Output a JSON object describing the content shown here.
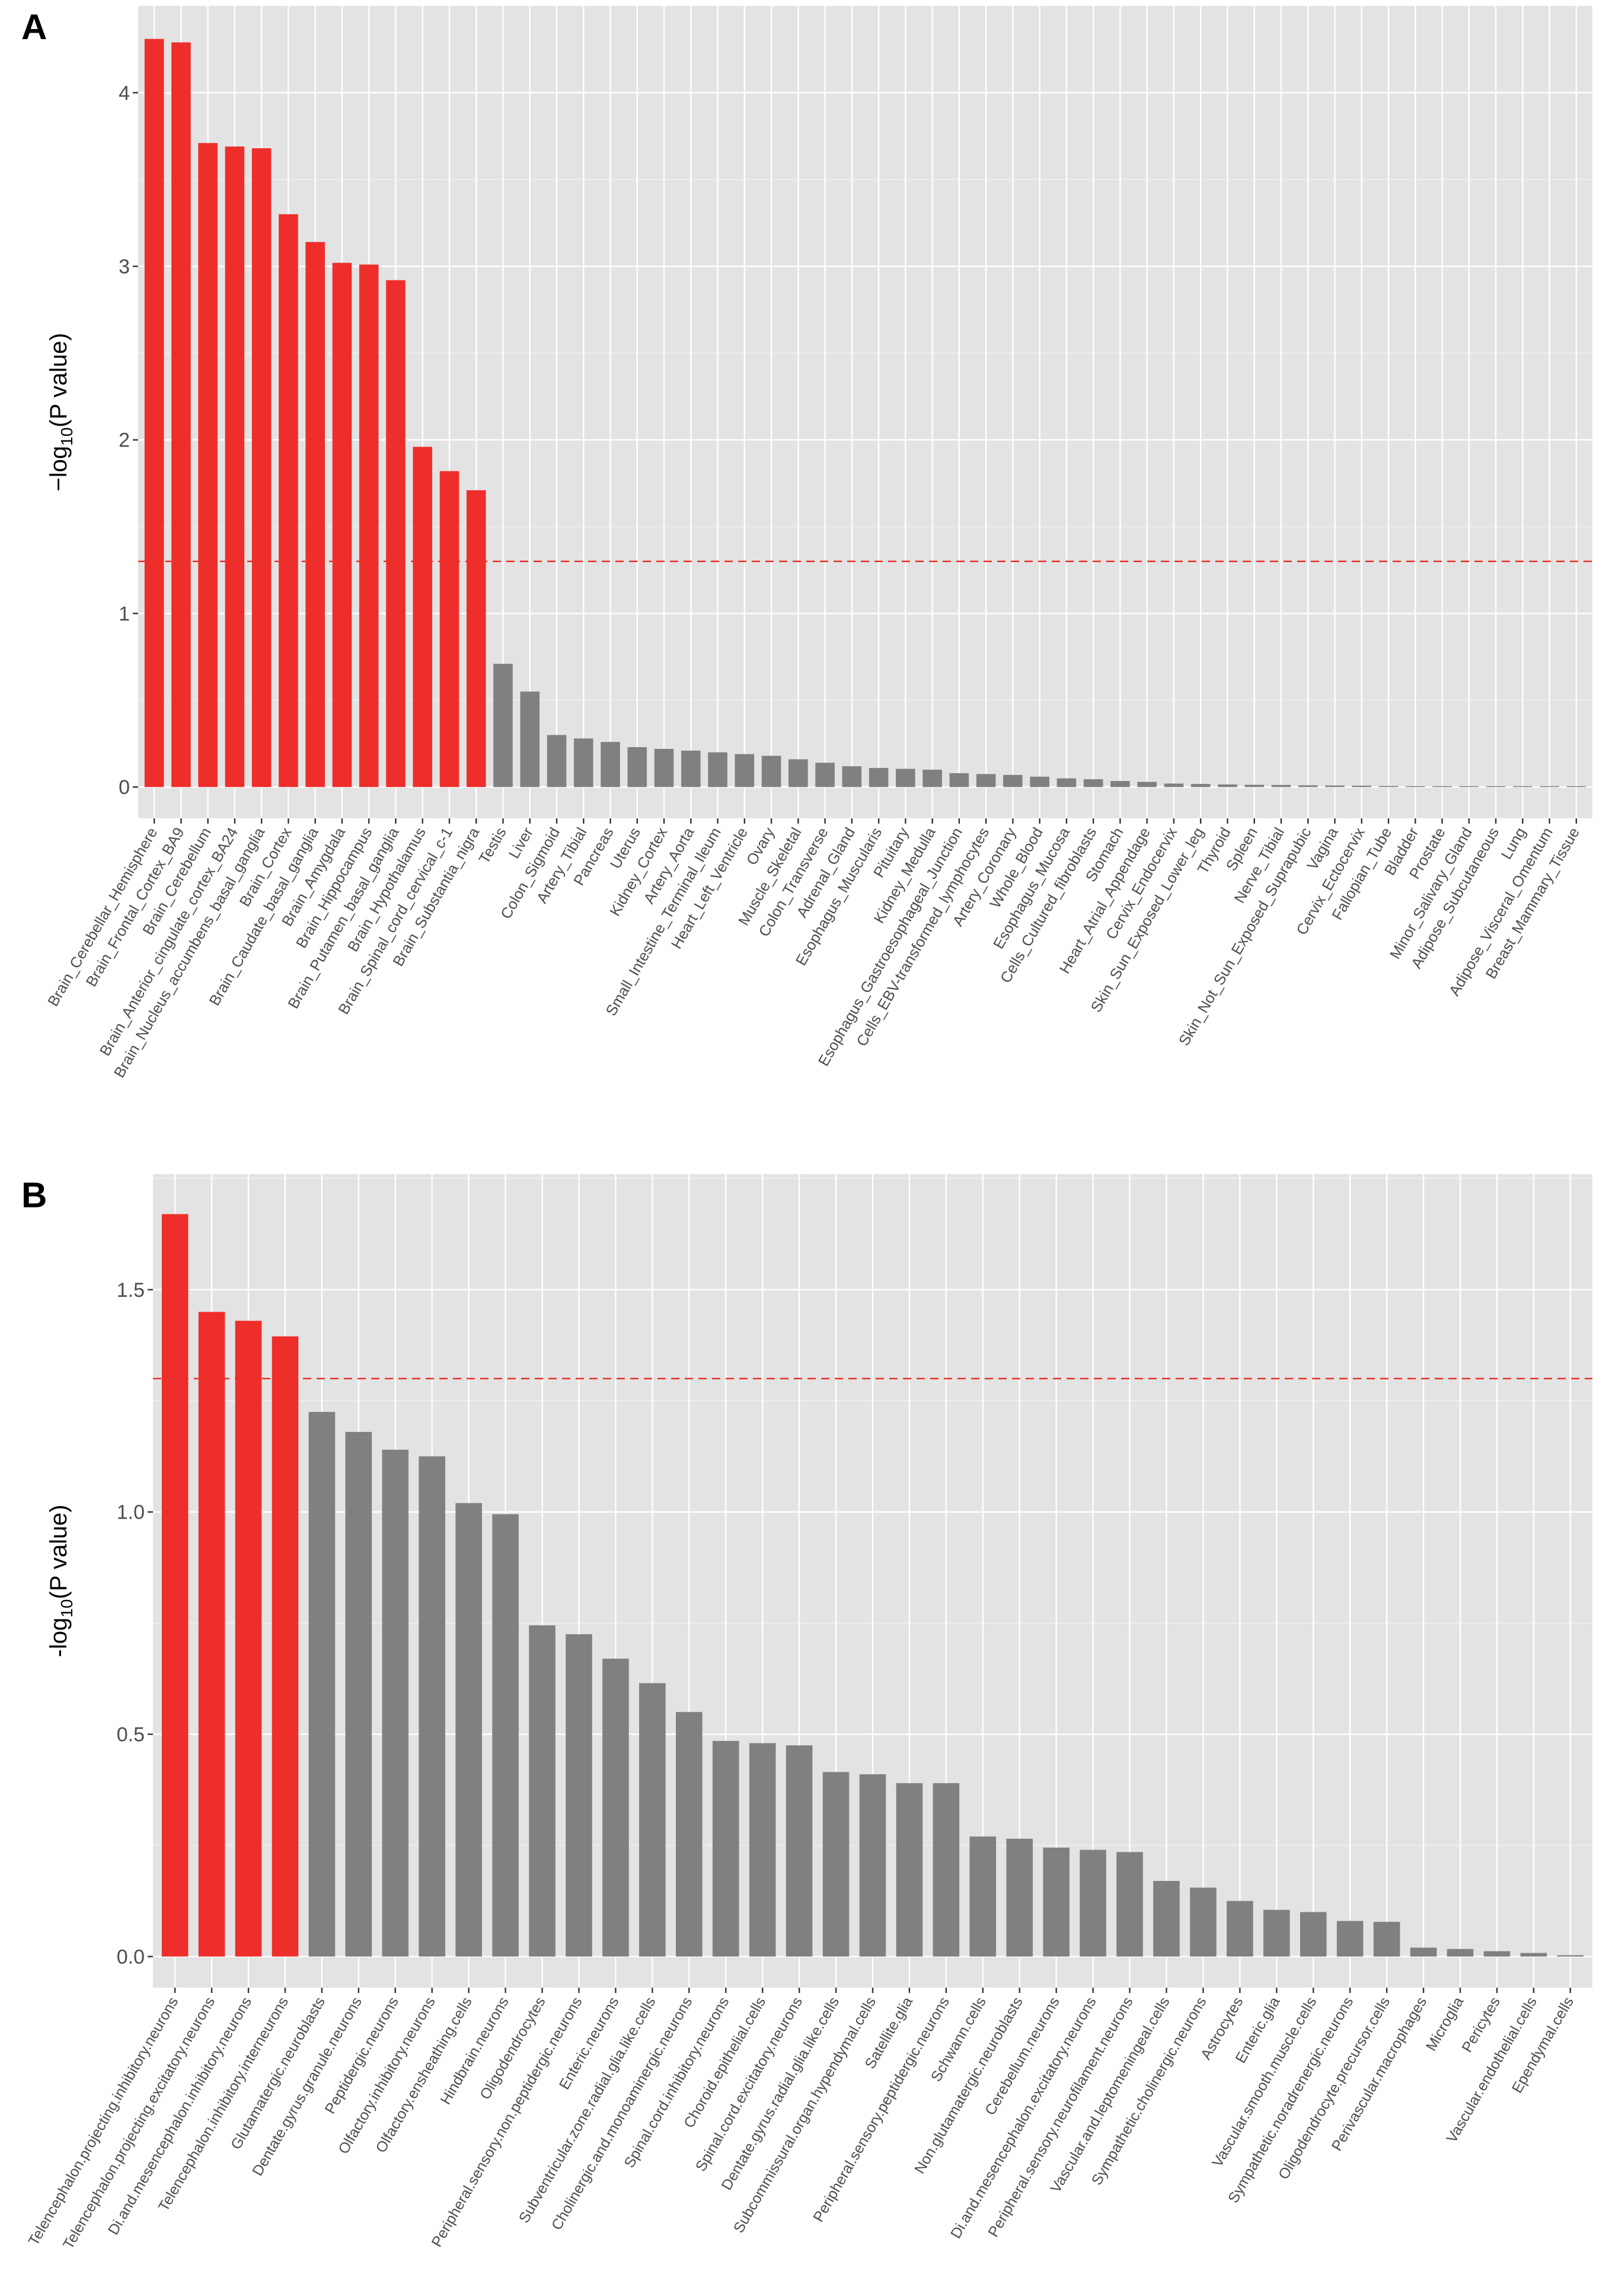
{
  "panel_labels": [
    "A",
    "B"
  ],
  "threshold_color": "#e8312a",
  "colors": {
    "significant": "#ee2e2a",
    "nonsignificant": "#808083",
    "panel_bg": "#e3e3e3",
    "grid": "#ffffff",
    "axis_text": "#4d4d4d"
  },
  "chart_data": [
    {
      "type": "bar",
      "panel": "A",
      "ylabel": "-log10(P value)",
      "ylabel_parts": {
        "prefix": "−log",
        "subscript": "10",
        "suffix": "(P value)"
      },
      "ylim": [
        -0.18,
        4.5
      ],
      "yticks": [
        0,
        1,
        2,
        3,
        4
      ],
      "ytick_labels": [
        "0",
        "1",
        "2",
        "3",
        "4"
      ],
      "threshold": 1.3,
      "categories": [
        "Brain_Cerebellar_Hemisphere",
        "Brain_Frontal_Cortex_BA9",
        "Brain_Cerebellum",
        "Brain_Anterior_cingulate_cortex_BA24",
        "Brain_Nucleus_accumbens_basal_ganglia",
        "Brain_Cortex",
        "Brain_Caudate_basal_ganglia",
        "Brain_Amygdala",
        "Brain_Hippocampus",
        "Brain_Putamen_basal_ganglia",
        "Brain_Hypothalamus",
        "Brain_Spinal_cord_cervical_c-1",
        "Brain_Substantia_nigra",
        "Testis",
        "Liver",
        "Colon_Sigmoid",
        "Artery_Tibial",
        "Pancreas",
        "Uterus",
        "Kidney_Cortex",
        "Artery_Aorta",
        "Small_Intestine_Terminal_Ileum",
        "Heart_Left_Ventricle",
        "Ovary",
        "Muscle_Skeletal",
        "Colon_Transverse",
        "Adrenal_Gland",
        "Esophagus_Muscularis",
        "Pituitary",
        "Kidney_Medulla",
        "Esophagus_Gastroesophageal_Junction",
        "Cells_EBV-transformed_lymphocytes",
        "Artery_Coronary",
        "Whole_Blood",
        "Esophagus_Mucosa",
        "Cells_Cultured_fibroblasts",
        "Stomach",
        "Heart_Atrial_Appendage",
        "Cervix_Endocervix",
        "Skin_Sun_Exposed_Lower_leg",
        "Thyroid",
        "Spleen",
        "Nerve_Tibial",
        "Skin_Not_Sun_Exposed_Suprapubic",
        "Vagina",
        "Cervix_Ectocervix",
        "Fallopian_Tube",
        "Bladder",
        "Prostate",
        "Minor_Salivary_Gland",
        "Adipose_Subcutaneous",
        "Lung",
        "Adipose_Visceral_Omentum",
        "Breast_Mammary_Tissue"
      ],
      "values": [
        4.31,
        4.29,
        3.71,
        3.69,
        3.68,
        3.3,
        3.14,
        3.02,
        3.01,
        2.92,
        1.96,
        1.82,
        1.71,
        0.71,
        0.55,
        0.3,
        0.28,
        0.26,
        0.23,
        0.22,
        0.21,
        0.2,
        0.19,
        0.18,
        0.16,
        0.14,
        0.12,
        0.11,
        0.105,
        0.1,
        0.08,
        0.075,
        0.07,
        0.06,
        0.05,
        0.045,
        0.035,
        0.03,
        0.02,
        0.018,
        0.015,
        0.013,
        0.012,
        0.01,
        0.009,
        0.008,
        0.006,
        0.005,
        0.004,
        0.003,
        0.002,
        0.001,
        0.001,
        0.0005
      ],
      "n_significant": 13
    },
    {
      "type": "bar",
      "panel": "B",
      "ylabel": "-log10(P value)",
      "ylabel_parts": {
        "prefix": "-log",
        "subscript": "10",
        "suffix": "(P value)"
      },
      "ylim": [
        -0.07,
        1.76
      ],
      "yticks": [
        0,
        0.5,
        1.0,
        1.5
      ],
      "ytick_labels": [
        "0.0",
        "0.5",
        "1.0",
        "1.5"
      ],
      "threshold": 1.3,
      "categories": [
        "Telencephalon.projecting.inhibitory.neurons",
        "Telencephalon.projecting.excitatory.neurons",
        "Di.and.mesencephalon.inhibitory.neurons",
        "Telencephalon.inhibitory.interneurons",
        "Glutamatergic.neuroblasts",
        "Dentate.gyrus.granule.neurons",
        "Peptidergic.neurons",
        "Olfactory.inhibitory.neurons",
        "Olfactory.ensheathing.cells",
        "Hindbrain.neurons",
        "Oligodendrocytes",
        "Peripheral.sensory.non.peptidergic.neurons",
        "Enteric.neurons",
        "Subventricular.zone.radial.glia.like.cells",
        "Cholinergic.and.monoaminergic.neurons",
        "Spinal.cord.inhibitory.neurons",
        "Choroid.epithelial.cells",
        "Spinal.cord.excitatory.neurons",
        "Dentate.gyrus.radial.glia.like.cells",
        "Subcommissural.organ.hypendymal.cells",
        "Satellite.glia",
        "Peripheral.sensory.peptidergic.neurons",
        "Schwann.cells",
        "Non.glutamatergic.neuroblasts",
        "Cerebellum.neurons",
        "Di.and.mesencephalon.excitatory.neurons",
        "Peripheral.sensory.neurofilament.neurons",
        "Vascular.and.leptomeningeal.cells",
        "Sympathetic.cholinergic.neurons",
        "Astrocytes",
        "Enteric.glia",
        "Vascular.smooth.muscle.cells",
        "Sympathetic.noradrenergic.neurons",
        "Oligodendrocyte.precursor.cells",
        "Perivascular.macrophages",
        "Microglia",
        "Pericytes",
        "Vascular.endothelial.cells",
        "Ependymal.cells"
      ],
      "values": [
        1.67,
        1.45,
        1.43,
        1.395,
        1.225,
        1.18,
        1.14,
        1.125,
        1.02,
        0.995,
        0.745,
        0.725,
        0.67,
        0.615,
        0.55,
        0.485,
        0.48,
        0.475,
        0.415,
        0.41,
        0.39,
        0.39,
        0.27,
        0.265,
        0.245,
        0.24,
        0.235,
        0.17,
        0.155,
        0.125,
        0.105,
        0.1,
        0.08,
        0.078,
        0.02,
        0.017,
        0.012,
        0.008,
        0.003
      ],
      "n_significant": 4
    }
  ]
}
